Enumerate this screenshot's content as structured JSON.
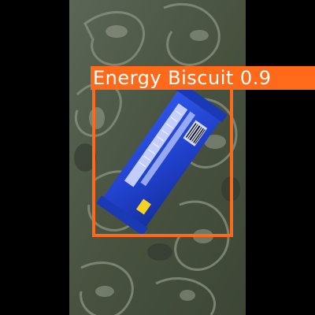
{
  "detection": {
    "label": "Energy Biscuit 0.9",
    "box_color": "#ff6a1a",
    "text_color": "#ffffff"
  },
  "scene": {
    "background_color": "#000000",
    "fabric_base_color": "#4f5a4c",
    "wrapper_color": "#2348d8"
  }
}
